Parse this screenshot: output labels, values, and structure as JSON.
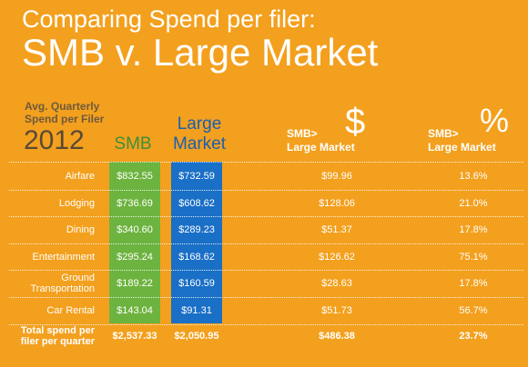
{
  "header": {
    "title_line1": "Comparing Spend per filer:",
    "title_line2": "SMB v. Large Market"
  },
  "table_headers": {
    "avg_label": "Avg. Quarterly Spend per Filer",
    "year": "2012",
    "smb": "SMB",
    "large_line1": "Large",
    "large_line2": "Market",
    "dollar_symbol": "$",
    "dollar_line1": "SMB>",
    "dollar_line2": "Large Market",
    "pct_symbol": "%",
    "pct_line1": "SMB>",
    "pct_line2": "Large Market"
  },
  "colors": {
    "background": "#f3a01e",
    "smb": "#6db33f",
    "large_market": "#1a6fc6"
  },
  "chart_data": {
    "type": "table",
    "title": "Comparing Spend per filer: SMB v. Large Market",
    "columns": [
      "SMB",
      "Large Market",
      "SMB> Large Market $",
      "SMB> Large Market %"
    ],
    "rows": [
      {
        "category_line1": "Airfare",
        "category_line2": "",
        "smb": "$832.55",
        "large": "$732.59",
        "diff": "$99.96",
        "pct": "13.6%"
      },
      {
        "category_line1": "Lodging",
        "category_line2": "",
        "smb": "$736.69",
        "large": "$608.62",
        "diff": "$128.06",
        "pct": "21.0%"
      },
      {
        "category_line1": "Dining",
        "category_line2": "",
        "smb": "$340.60",
        "large": "$289.23",
        "diff": "$51.37",
        "pct": "17.8%"
      },
      {
        "category_line1": "Entertainment",
        "category_line2": "",
        "smb": "$295.24",
        "large": "$168.62",
        "diff": "$126.62",
        "pct": "75.1%"
      },
      {
        "category_line1": "Ground",
        "category_line2": "Transportation",
        "smb": "$189.22",
        "large": "$160.59",
        "diff": "$28.63",
        "pct": "17.8%"
      },
      {
        "category_line1": "Car Rental",
        "category_line2": "",
        "smb": "$143.04",
        "large": "$91.31",
        "diff": "$51.73",
        "pct": "56.7%"
      }
    ],
    "total": {
      "category_line1": "Total spend per",
      "category_line2": "filer per quarter",
      "smb": "$2,537.33",
      "large": "$2,050.95",
      "diff": "$486.38",
      "pct": "23.7%"
    }
  }
}
